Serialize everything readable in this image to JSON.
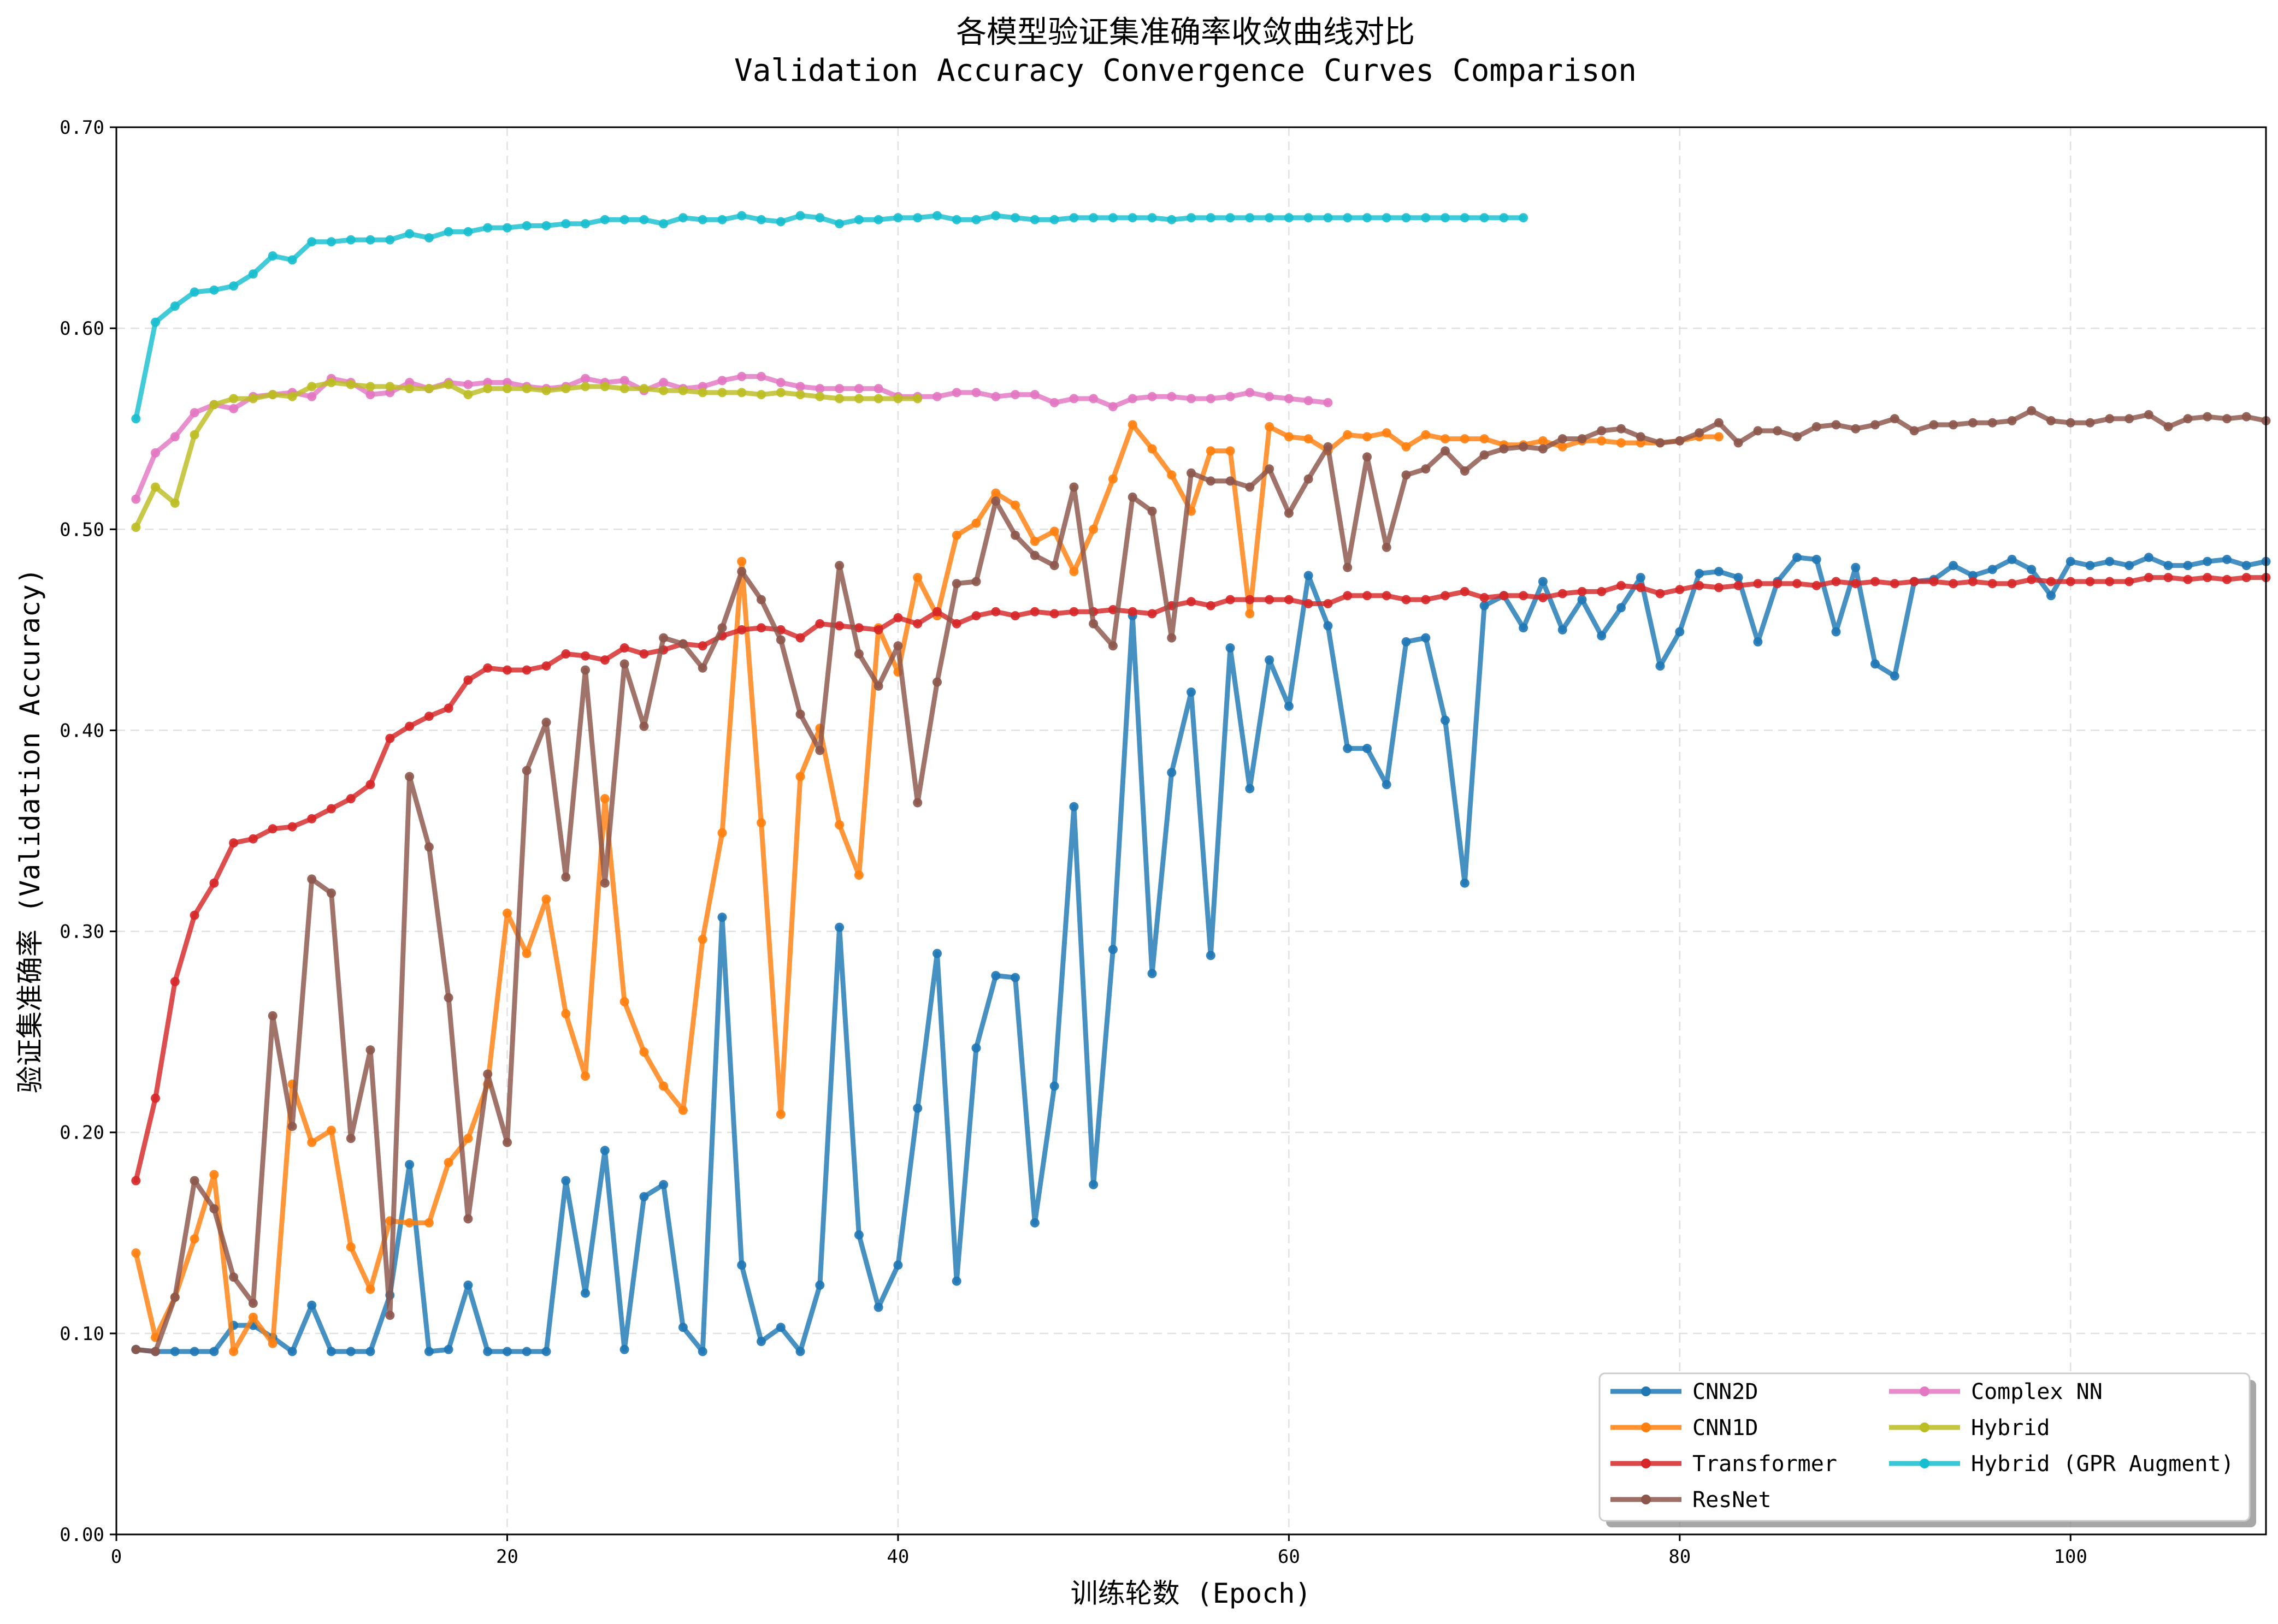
{
  "chart_data": {
    "type": "line",
    "title": "各模型验证集准确率收敛曲线对比",
    "subtitle": "Validation Accuracy Convergence Curves Comparison",
    "xlabel": "训练轮数 (Epoch)",
    "ylabel": "验证集准确率 (Validation Accuracy)",
    "xlim": [
      0,
      110
    ],
    "ylim": [
      0.0,
      0.7
    ],
    "xticks": [
      0,
      20,
      40,
      60,
      80,
      100
    ],
    "xtick_labels": [
      "0",
      "20",
      "40",
      "60",
      "80",
      "100"
    ],
    "yticks": [
      0.0,
      0.1,
      0.2,
      0.3,
      0.4,
      0.5,
      0.6,
      0.7
    ],
    "ytick_labels": [
      "0.00",
      "0.10",
      "0.20",
      "0.30",
      "0.40",
      "0.50",
      "0.60",
      "0.70"
    ],
    "grid": true,
    "legend_position": "lower-right",
    "series": [
      {
        "name": "CNN2D",
        "color": "#1f77b4",
        "start_epoch": 1,
        "values": [
          0.092,
          0.091,
          0.091,
          0.091,
          0.091,
          0.104,
          0.104,
          0.098,
          0.091,
          0.114,
          0.091,
          0.091,
          0.091,
          0.119,
          0.184,
          0.091,
          0.092,
          0.124,
          0.091,
          0.091,
          0.091,
          0.091,
          0.176,
          0.12,
          0.191,
          0.092,
          0.168,
          0.174,
          0.103,
          0.091,
          0.307,
          0.134,
          0.096,
          0.103,
          0.091,
          0.124,
          0.302,
          0.149,
          0.113,
          0.134,
          0.212,
          0.289,
          0.126,
          0.242,
          0.278,
          0.277,
          0.155,
          0.223,
          0.362,
          0.174,
          0.291,
          0.457,
          0.279,
          0.379,
          0.419,
          0.288,
          0.441,
          0.371,
          0.435,
          0.412,
          0.477,
          0.452,
          0.391,
          0.391,
          0.373,
          0.444,
          0.446,
          0.405,
          0.324,
          0.462,
          0.467,
          0.451,
          0.474,
          0.45,
          0.465,
          0.447,
          0.461,
          0.476,
          0.432,
          0.449,
          0.478,
          0.479,
          0.476,
          0.444,
          0.474,
          0.486,
          0.485,
          0.449,
          0.481,
          0.433,
          0.427,
          0.474,
          0.475,
          0.482,
          0.477,
          0.48,
          0.485,
          0.48,
          0.467,
          0.484,
          0.482,
          0.484,
          0.482,
          0.486,
          0.482,
          0.482,
          0.484,
          0.485,
          0.482,
          0.484
        ]
      },
      {
        "name": "CNN1D",
        "color": "#ff7f0e",
        "start_epoch": 1,
        "values": [
          0.14,
          0.098,
          0.118,
          0.147,
          0.179,
          0.091,
          0.108,
          0.095,
          0.224,
          0.195,
          0.201,
          0.143,
          0.122,
          0.156,
          0.155,
          0.155,
          0.185,
          0.197,
          0.224,
          0.309,
          0.289,
          0.316,
          0.259,
          0.228,
          0.366,
          0.265,
          0.24,
          0.223,
          0.211,
          0.296,
          0.349,
          0.484,
          0.354,
          0.209,
          0.377,
          0.401,
          0.353,
          0.328,
          0.451,
          0.429,
          0.476,
          0.457,
          0.497,
          0.503,
          0.518,
          0.512,
          0.494,
          0.499,
          0.479,
          0.5,
          0.525,
          0.552,
          0.54,
          0.527,
          0.509,
          0.539,
          0.539,
          0.458,
          0.551,
          0.546,
          0.545,
          0.539,
          0.547,
          0.546,
          0.548,
          0.541,
          0.547,
          0.545,
          0.545,
          0.545,
          0.542,
          0.542,
          0.544,
          0.541,
          0.544,
          0.544,
          0.543,
          0.543,
          0.543,
          0.544,
          0.546,
          0.546
        ]
      },
      {
        "name": "Transformer",
        "color": "#d62728",
        "start_epoch": 1,
        "values": [
          0.176,
          0.217,
          0.275,
          0.308,
          0.324,
          0.344,
          0.346,
          0.351,
          0.352,
          0.356,
          0.361,
          0.366,
          0.373,
          0.396,
          0.402,
          0.407,
          0.411,
          0.425,
          0.431,
          0.43,
          0.43,
          0.432,
          0.438,
          0.437,
          0.435,
          0.441,
          0.438,
          0.44,
          0.443,
          0.442,
          0.447,
          0.45,
          0.451,
          0.45,
          0.446,
          0.453,
          0.452,
          0.451,
          0.45,
          0.456,
          0.453,
          0.459,
          0.453,
          0.457,
          0.459,
          0.457,
          0.459,
          0.458,
          0.459,
          0.459,
          0.46,
          0.459,
          0.458,
          0.462,
          0.464,
          0.462,
          0.465,
          0.465,
          0.465,
          0.465,
          0.463,
          0.463,
          0.467,
          0.467,
          0.467,
          0.465,
          0.465,
          0.467,
          0.469,
          0.466,
          0.467,
          0.467,
          0.466,
          0.468,
          0.469,
          0.469,
          0.472,
          0.471,
          0.468,
          0.47,
          0.472,
          0.471,
          0.472,
          0.473,
          0.473,
          0.473,
          0.472,
          0.474,
          0.473,
          0.474,
          0.473,
          0.474,
          0.474,
          0.473,
          0.474,
          0.473,
          0.473,
          0.475,
          0.474,
          0.474,
          0.474,
          0.474,
          0.474,
          0.476,
          0.476,
          0.475,
          0.476,
          0.475,
          0.476,
          0.476
        ]
      },
      {
        "name": "ResNet",
        "color": "#8c564b",
        "start_epoch": 1,
        "values": [
          0.092,
          0.091,
          0.118,
          0.176,
          0.162,
          0.128,
          0.115,
          0.258,
          0.203,
          0.326,
          0.319,
          0.197,
          0.241,
          0.109,
          0.377,
          0.342,
          0.267,
          0.157,
          0.229,
          0.195,
          0.38,
          0.404,
          0.327,
          0.43,
          0.324,
          0.433,
          0.402,
          0.446,
          0.443,
          0.431,
          0.451,
          0.479,
          0.465,
          0.445,
          0.408,
          0.39,
          0.482,
          0.438,
          0.422,
          0.442,
          0.364,
          0.424,
          0.473,
          0.474,
          0.514,
          0.497,
          0.487,
          0.482,
          0.521,
          0.453,
          0.442,
          0.516,
          0.509,
          0.446,
          0.528,
          0.524,
          0.524,
          0.521,
          0.53,
          0.508,
          0.525,
          0.541,
          0.481,
          0.536,
          0.491,
          0.527,
          0.53,
          0.539,
          0.529,
          0.537,
          0.54,
          0.541,
          0.54,
          0.545,
          0.545,
          0.549,
          0.55,
          0.546,
          0.543,
          0.544,
          0.548,
          0.553,
          0.543,
          0.549,
          0.549,
          0.546,
          0.551,
          0.552,
          0.55,
          0.552,
          0.555,
          0.549,
          0.552,
          0.552,
          0.553,
          0.553,
          0.554,
          0.559,
          0.554,
          0.553,
          0.553,
          0.555,
          0.555,
          0.557,
          0.551,
          0.555,
          0.556,
          0.555,
          0.556,
          0.554
        ]
      },
      {
        "name": "Complex NN",
        "color": "#e377c2",
        "start_epoch": 1,
        "values": [
          0.515,
          0.538,
          0.546,
          0.558,
          0.562,
          0.56,
          0.566,
          0.567,
          0.568,
          0.566,
          0.575,
          0.573,
          0.567,
          0.568,
          0.573,
          0.57,
          0.573,
          0.572,
          0.573,
          0.573,
          0.571,
          0.57,
          0.571,
          0.575,
          0.573,
          0.574,
          0.569,
          0.573,
          0.57,
          0.571,
          0.574,
          0.576,
          0.576,
          0.573,
          0.571,
          0.57,
          0.57,
          0.57,
          0.57,
          0.566,
          0.566,
          0.566,
          0.568,
          0.568,
          0.566,
          0.567,
          0.567,
          0.563,
          0.565,
          0.565,
          0.561,
          0.565,
          0.566,
          0.566,
          0.565,
          0.565,
          0.566,
          0.568,
          0.566,
          0.565,
          0.564,
          0.563
        ]
      },
      {
        "name": "Hybrid",
        "color": "#bcbd22",
        "start_epoch": 1,
        "values": [
          0.501,
          0.521,
          0.513,
          0.547,
          0.562,
          0.565,
          0.565,
          0.567,
          0.566,
          0.571,
          0.573,
          0.572,
          0.571,
          0.571,
          0.57,
          0.57,
          0.572,
          0.567,
          0.57,
          0.57,
          0.57,
          0.569,
          0.57,
          0.571,
          0.571,
          0.57,
          0.57,
          0.569,
          0.569,
          0.568,
          0.568,
          0.568,
          0.567,
          0.568,
          0.567,
          0.566,
          0.565,
          0.565,
          0.565,
          0.565,
          0.565
        ]
      },
      {
        "name": "Hybrid (GPR Augment)",
        "color": "#17becf",
        "start_epoch": 1,
        "values": [
          0.555,
          0.603,
          0.611,
          0.618,
          0.619,
          0.621,
          0.627,
          0.636,
          0.634,
          0.643,
          0.643,
          0.644,
          0.644,
          0.644,
          0.647,
          0.645,
          0.648,
          0.648,
          0.65,
          0.65,
          0.651,
          0.651,
          0.652,
          0.652,
          0.654,
          0.654,
          0.654,
          0.652,
          0.655,
          0.654,
          0.654,
          0.656,
          0.654,
          0.653,
          0.656,
          0.655,
          0.652,
          0.654,
          0.654,
          0.655,
          0.655,
          0.656,
          0.654,
          0.654,
          0.656,
          0.655,
          0.654,
          0.654,
          0.655,
          0.655,
          0.655,
          0.655,
          0.655,
          0.654,
          0.655,
          0.655,
          0.655,
          0.655,
          0.655,
          0.655,
          0.655,
          0.655,
          0.655,
          0.655,
          0.655,
          0.655,
          0.655,
          0.655,
          0.655,
          0.655,
          0.655,
          0.655
        ]
      }
    ]
  }
}
